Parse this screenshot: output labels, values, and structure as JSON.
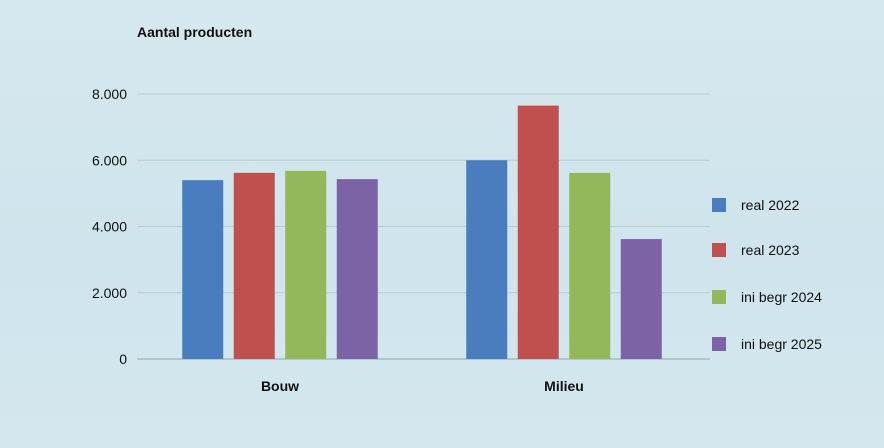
{
  "chart_data": {
    "type": "bar",
    "title": "Aantal producten",
    "categories": [
      "Bouw",
      "Milieu"
    ],
    "series": [
      {
        "name": "real 2022",
        "values": [
          5400,
          6000
        ],
        "color": "#4a7dbd"
      },
      {
        "name": "real 2023",
        "values": [
          5620,
          7650
        ],
        "color": "#c0504d"
      },
      {
        "name": "ini begr 2024",
        "values": [
          5680,
          5620
        ],
        "color": "#93b85a"
      },
      {
        "name": "ini begr 2025",
        "values": [
          5430,
          3620
        ],
        "color": "#7b63a6"
      }
    ],
    "ylim": [
      0,
      8000
    ],
    "yticks": [
      {
        "value": 0,
        "label": "0"
      },
      {
        "value": 2000,
        "label": "2.000"
      },
      {
        "value": 4000,
        "label": "4.000"
      },
      {
        "value": 6000,
        "label": "6.000"
      },
      {
        "value": 8000,
        "label": "8.000"
      }
    ],
    "grid": true,
    "legend": "right"
  }
}
